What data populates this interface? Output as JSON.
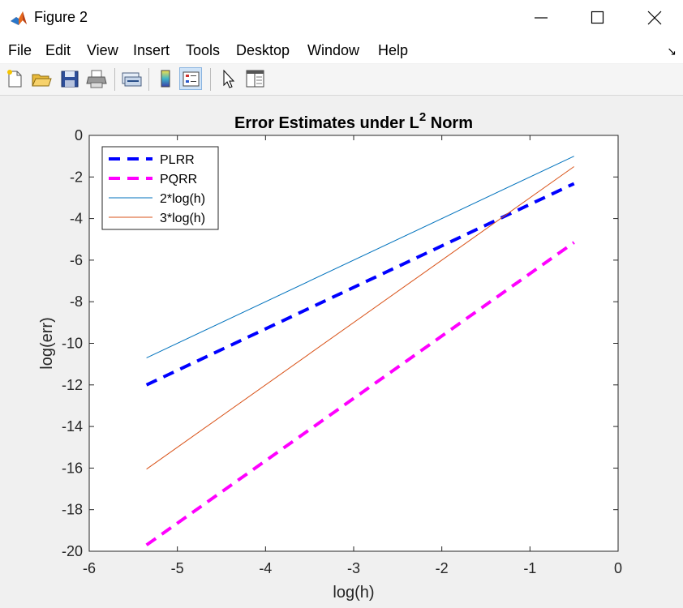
{
  "window": {
    "title": "Figure 2",
    "title_icon": "matlab-logo-icon",
    "controls": [
      "minimize-icon",
      "maximize-icon",
      "close-icon"
    ]
  },
  "menu": {
    "items": [
      "File",
      "Edit",
      "View",
      "Insert",
      "Tools",
      "Desktop",
      "Window",
      "Help"
    ],
    "overflow_glyph": "↘"
  },
  "toolbar": {
    "icons": [
      "new-figure-icon",
      "open-file-icon",
      "save-icon",
      "print-icon",
      "link-plot-icon",
      "colorbar-icon",
      "legend-icon",
      "pointer-icon",
      "property-editor-icon"
    ],
    "active": "legend-icon"
  },
  "chart_data": {
    "type": "line",
    "title_prefix": "Error Estimates under L",
    "title_superscript": "2",
    "title_suffix": " Norm",
    "xlabel": "log(h)",
    "ylabel": "log(err)",
    "xlim": [
      -6,
      0
    ],
    "ylim": [
      -20,
      0
    ],
    "xticks": [
      -6,
      -5,
      -4,
      -3,
      -2,
      -1,
      0
    ],
    "yticks": [
      0,
      -2,
      -4,
      -6,
      -8,
      -10,
      -12,
      -14,
      -16,
      -18,
      -20
    ],
    "grid": false,
    "legend_position": "top-left",
    "series": [
      {
        "name": "PLRR",
        "color": "#0000ff",
        "style": "dashed-thick",
        "x": [
          -5.35,
          -0.5
        ],
        "y": [
          -12.0,
          -2.32
        ]
      },
      {
        "name": "PQRR",
        "color": "#ff00ff",
        "style": "dashed-thick",
        "x": [
          -5.35,
          -0.5
        ],
        "y": [
          -19.7,
          -5.15
        ]
      },
      {
        "name": "2*log(h)",
        "color": "#0072bd",
        "style": "solid-thin",
        "x": [
          -5.35,
          -0.5
        ],
        "y": [
          -10.7,
          -1.0
        ]
      },
      {
        "name": "3*log(h)",
        "color": "#d95319",
        "style": "solid-thin",
        "x": [
          -5.35,
          -0.5
        ],
        "y": [
          -16.05,
          -1.5
        ]
      }
    ]
  }
}
